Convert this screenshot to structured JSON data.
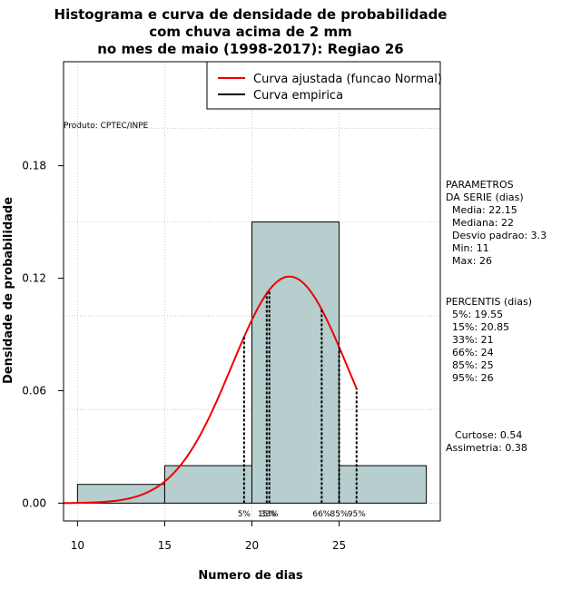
{
  "chart_data": {
    "type": "bar",
    "title_lines": [
      "Histograma e curva de densidade de probabilidade",
      "com chuva acima de 2 mm",
      "no mes de maio (1998-2017): Regiao 26"
    ],
    "xlabel": "Numero de dias",
    "ylabel": "Densidade de probabilidade",
    "xlim": [
      9.2,
      30.8
    ],
    "ylim": [
      -0.0095,
      0.2355
    ],
    "x_ticks": [
      10,
      15,
      20,
      25
    ],
    "y_ticks": [
      0.0,
      0.06,
      0.12,
      0.18
    ],
    "y_tick_labels": [
      "0.00",
      "0.06",
      "0.12",
      "0.18"
    ],
    "histogram": {
      "bin_edges": [
        10,
        15,
        20,
        25,
        30
      ],
      "densities": [
        0.01,
        0.02,
        0.15,
        0.02
      ],
      "fill": "#b6cecd"
    },
    "normal_curve": {
      "mean": 22.15,
      "sd": 3.3,
      "x_start": 9.2,
      "x_end": 26.0,
      "color": "#ee0000"
    },
    "percentile_lines": [
      {
        "label": "5%",
        "x": 19.55
      },
      {
        "label": "15%",
        "x": 20.85
      },
      {
        "label": "33%",
        "x": 21.0
      },
      {
        "label": "66%",
        "x": 24.0
      },
      {
        "label": "85%",
        "x": 25.0
      },
      {
        "label": "95%",
        "x": 26.0
      }
    ],
    "legend": [
      {
        "label": "Curva ajustada (funcao Normal)",
        "color": "#ee0000"
      },
      {
        "label": "Curva empirica",
        "color": "#000000"
      }
    ],
    "legend_position": "top-right",
    "credit": "Produto: CPTEC/INPE"
  },
  "side_panel": {
    "params_title_1": "PARAMETROS",
    "params_title_2": "DA SERIE (dias)",
    "media": "Media: 22.15",
    "mediana": "Mediana: 22",
    "desvio": "Desvio padrao: 3.3",
    "min": "Min: 11",
    "max": "Max: 26",
    "percentis_title": "PERCENTIS (dias)",
    "p5": "5%: 19.55",
    "p15": "15%: 20.85",
    "p33": "33%: 21",
    "p66": "66%: 24",
    "p85": "85%: 25",
    "p95": "95%: 26",
    "curtose": "Curtose: 0.54",
    "assimetria": "Assimetria: 0.38"
  }
}
